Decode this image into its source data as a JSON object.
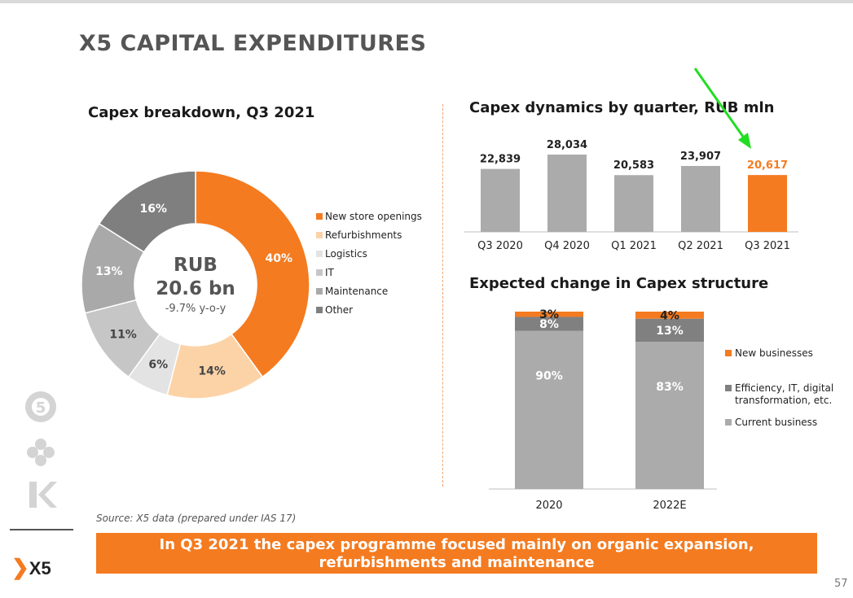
{
  "header": {
    "title": "X5 CAPITAL EXPENDITURES"
  },
  "colors": {
    "orange": "#f47b20",
    "light_orange": "#fcd3a7",
    "logistics": "#d9d9d9",
    "it": "#c8c8c8",
    "maintenance": "#ababab",
    "other": "#808080",
    "bar_gray": "#ababab",
    "dark_gray": "#808080"
  },
  "donut": {
    "center_line1": "RUB",
    "center_line2": "20.6 bn",
    "center_line3": "-9.7% y-o-y"
  },
  "chart_data": [
    {
      "type": "pie",
      "title": "Capex breakdown, Q3 2021",
      "categories": [
        "New store openings",
        "Refurbishments",
        "Logistics",
        "IT",
        "Maintenance",
        "Other"
      ],
      "values": [
        40,
        14,
        6,
        11,
        13,
        16
      ],
      "labels": [
        "40%",
        "14%",
        "6%",
        "11%",
        "13%",
        "16%"
      ],
      "colors": [
        "#f47b20",
        "#fcd3a7",
        "#e3e3e3",
        "#c6c6c6",
        "#a9a9a9",
        "#7f7f7f"
      ],
      "legend_position": "right"
    },
    {
      "type": "bar",
      "title": "Capex dynamics by quarter, RUB mln",
      "categories": [
        "Q3 2020",
        "Q4 2020",
        "Q1 2021",
        "Q2 2021",
        "Q3 2021"
      ],
      "values": [
        22839,
        28034,
        20583,
        23907,
        20617
      ],
      "labels": [
        "22,839",
        "28,034",
        "20,583",
        "23,907",
        "20,617"
      ],
      "highlight_index": 4
    },
    {
      "type": "bar",
      "stacked": true,
      "title": "Expected change in Capex structure",
      "categories": [
        "2020",
        "2022E"
      ],
      "series": [
        {
          "name": "Current business",
          "values": [
            90,
            83
          ],
          "labels": [
            "90%",
            "83%"
          ],
          "color": "#ababab"
        },
        {
          "name": "Efficiency, IT, digital transformation, etc.",
          "values": [
            8,
            13
          ],
          "labels": [
            "8%",
            "13%"
          ],
          "color": "#808080"
        },
        {
          "name": "New businesses",
          "values": [
            3,
            4
          ],
          "labels": [
            "3%",
            "4%"
          ],
          "color": "#f47b20"
        }
      ],
      "legend_position": "right"
    }
  ],
  "legend_stack": {
    "new_businesses": "New businesses",
    "efficiency_line1": "Efficiency, IT, digital",
    "efficiency_line2": "transformation, etc.",
    "current": "Current business"
  },
  "footer": {
    "source": "Source: X5 data (prepared under IAS 17)",
    "banner_line1": "In Q3 2021 the capex programme focused mainly on organic expansion,",
    "banner_line2": "refurbishments and maintenance",
    "page_number": "57",
    "logo_text": "X5",
    "logo_chevron": "❯"
  }
}
